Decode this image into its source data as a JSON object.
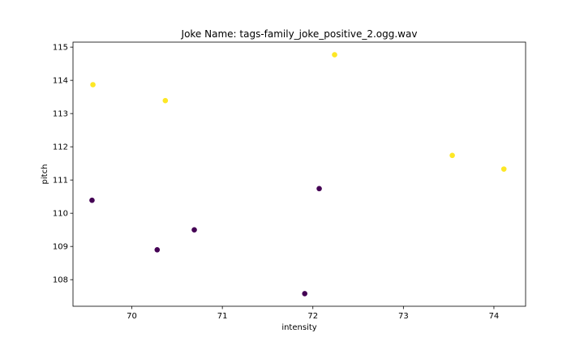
{
  "chart_data": {
    "type": "scatter",
    "title": "Joke Name: tags-family_joke_positive_2.ogg.wav",
    "xlabel": "intensity",
    "ylabel": "pitch",
    "xlim": [
      69.35,
      74.35
    ],
    "ylim": [
      107.2,
      115.15
    ],
    "xticks": [
      70,
      71,
      72,
      73,
      74
    ],
    "yticks": [
      108,
      109,
      110,
      111,
      112,
      113,
      114,
      115
    ],
    "grid": false,
    "colors": {
      "class_1": "#fde725",
      "class_0": "#440154"
    },
    "points": [
      {
        "x": 69.57,
        "y": 113.87,
        "class": 1
      },
      {
        "x": 70.37,
        "y": 113.39,
        "class": 1
      },
      {
        "x": 72.24,
        "y": 114.77,
        "class": 1
      },
      {
        "x": 73.54,
        "y": 111.74,
        "class": 1
      },
      {
        "x": 74.11,
        "y": 111.33,
        "class": 1
      },
      {
        "x": 69.56,
        "y": 110.39,
        "class": 0
      },
      {
        "x": 70.28,
        "y": 108.9,
        "class": 0
      },
      {
        "x": 70.69,
        "y": 109.5,
        "class": 0
      },
      {
        "x": 72.07,
        "y": 110.74,
        "class": 0
      },
      {
        "x": 71.91,
        "y": 107.58,
        "class": 0
      }
    ]
  }
}
